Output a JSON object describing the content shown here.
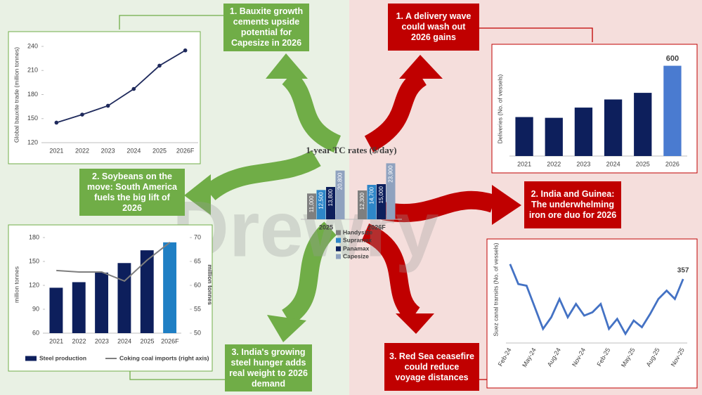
{
  "watermark": "Drewry",
  "callouts": [
    {
      "text": "1. Bauxite growth cements upside potential for Capesize in 2026",
      "color": "#70ad47"
    },
    {
      "text": "2. Soybeans on the move: South America fuels the big lift of 2026",
      "color": "#70ad47"
    },
    {
      "text": "3. India's growing steel hunger adds real weight to 2026 demand",
      "color": "#70ad47"
    },
    {
      "text": "1. A delivery wave could wash out 2026 gains",
      "color": "#c00000"
    },
    {
      "text": "2. India and Guinea: The underwhelming iron ore duo for 2026",
      "color": "#c00000"
    },
    {
      "text": "3. Red Sea ceasefire could reduce voyage distances",
      "color": "#c00000"
    }
  ],
  "chart_data": [
    {
      "type": "line",
      "y_label": "Global bauxite trade (million tonnes)",
      "categories": [
        "2021",
        "2022",
        "2023",
        "2024",
        "2025",
        "2026F"
      ],
      "values": [
        145,
        155,
        166,
        187,
        216,
        235
      ],
      "color": "#1f2a5c",
      "ylim": [
        120,
        240
      ],
      "yticks": [
        120,
        150,
        180,
        210,
        240
      ],
      "markers": true
    },
    {
      "type": "bar",
      "y_label": "Deliveries (No. of vessels)",
      "categories": [
        "2021",
        "2022",
        "2023",
        "2024",
        "2025",
        "2026"
      ],
      "values": [
        259,
        254,
        322,
        376,
        420,
        600
      ],
      "colors": [
        "#0d1f5c",
        "#0d1f5c",
        "#0d1f5c",
        "#0d1f5c",
        "#0d1f5c",
        "#4a7bd0"
      ],
      "ylim": [
        0,
        640
      ]
    },
    {
      "type": "bar",
      "title": "1-year TC rates ($/day)",
      "categories": [
        "2025",
        "2026F"
      ],
      "series": [
        {
          "name": "Handysize",
          "color": "#7f7f7f",
          "values": [
            11000,
            12300
          ],
          "value_labels": [
            "11,000",
            "12,300"
          ]
        },
        {
          "name": "Supramax",
          "color": "#2e86c8",
          "values": [
            12500,
            14700
          ],
          "value_labels": [
            "12,500",
            "14,700"
          ]
        },
        {
          "name": "Panamax",
          "color": "#0d1f5c",
          "values": [
            13800,
            15000
          ],
          "value_labels": [
            "13,800",
            "15,000"
          ]
        },
        {
          "name": "Capesize",
          "color": "#8fa2bf",
          "values": [
            20800,
            23900
          ],
          "value_labels": [
            "20,800",
            "23,900"
          ]
        }
      ],
      "ylim": [
        0,
        24000
      ]
    },
    {
      "type": "bar",
      "y_label": "million tonnes",
      "y2_label": "million tonnes",
      "categories": [
        "2021",
        "2022",
        "2023",
        "2024",
        "2025",
        "2026F"
      ],
      "series": [
        {
          "name": "Steel production",
          "color": "#0d1f5c",
          "colors": [
            "#0d1f5c",
            "#0d1f5c",
            "#0d1f5c",
            "#0d1f5c",
            "#0d1f5c",
            "#1f7fc4"
          ],
          "values": [
            117,
            124,
            136,
            148,
            164,
            174
          ]
        },
        {
          "name": "Coking coal imports (right axis)",
          "type": "line",
          "axis": "y2",
          "color": "#7f7f7f",
          "values": [
            63.1,
            62.8,
            62.8,
            60.9,
            65.3,
            69
          ]
        }
      ],
      "ylim": [
        60,
        180
      ],
      "yticks": [
        60,
        90,
        120,
        150,
        180
      ],
      "y2lim": [
        50,
        70
      ],
      "y2ticks": [
        50,
        55,
        60,
        65,
        70
      ]
    },
    {
      "type": "line",
      "y_label": "Suez canal transits (No. of vessels)",
      "categories": [
        "Feb-24",
        null,
        null,
        "May-24",
        null,
        null,
        "Aug-24",
        null,
        null,
        "Nov-24",
        null,
        null,
        "Feb-25",
        null,
        null,
        "May-25",
        null,
        null,
        "Aug-25",
        null,
        null,
        "Nov-25"
      ],
      "values": [
        375,
        351,
        349,
        323,
        297,
        311,
        333,
        311,
        327,
        313,
        317,
        327,
        297,
        309,
        291,
        307,
        299,
        315,
        333,
        343,
        333,
        357
      ],
      "color": "#4472c4",
      "ylim": [
        280,
        390
      ]
    }
  ]
}
